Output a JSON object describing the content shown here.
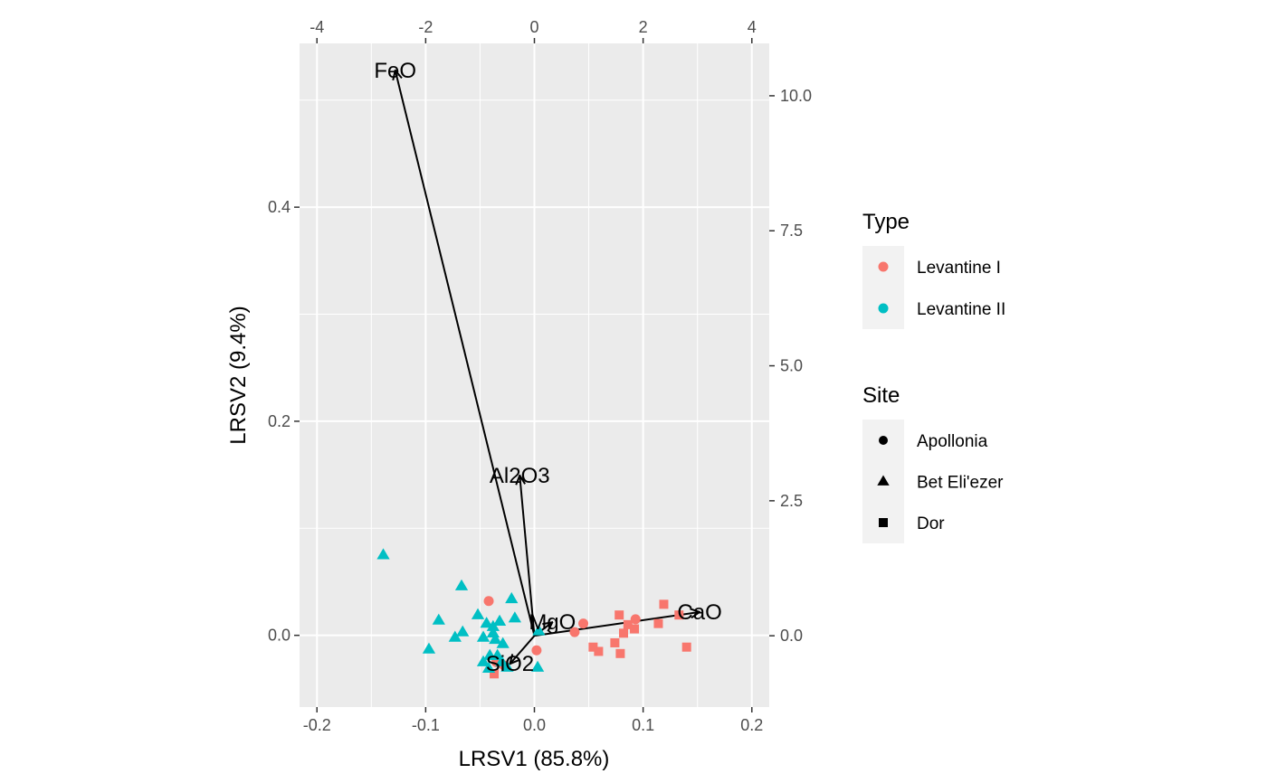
{
  "chart_data": {
    "type": "scatter",
    "subtype": "biplot",
    "title": "",
    "xlabel": "LRSV1 (85.8%)",
    "ylabel": "LRSV2 (9.4%)",
    "xlim": [
      -0.216,
      0.216
    ],
    "ylim": [
      -0.067,
      0.553
    ],
    "x_ticks": [
      -0.2,
      -0.1,
      0.0,
      0.1,
      0.2
    ],
    "x_tick_labels": [
      "-0.2",
      "-0.1",
      "0.0",
      "0.1",
      "0.2"
    ],
    "y_ticks": [
      0.0,
      0.2,
      0.4
    ],
    "y_tick_labels": [
      "0.0",
      "0.2",
      "0.4"
    ],
    "secondary_x": {
      "lim": [
        -4.32,
        4.32
      ],
      "ticks": [
        -4,
        -2,
        0,
        2,
        4
      ],
      "tick_labels": [
        "-4",
        "-2",
        "0",
        "2",
        "4"
      ]
    },
    "secondary_y": {
      "lim": [
        -1.32,
        10.97
      ],
      "ticks": [
        0.0,
        2.5,
        5.0,
        7.5,
        10.0
      ],
      "tick_labels": [
        "0.0",
        "2.5",
        "5.0",
        "7.5",
        "10.0"
      ]
    },
    "grid": true,
    "legend_position": "right",
    "colors": {
      "Levantine I": "#F8766D",
      "Levantine II": "#00BFC4"
    },
    "shapes": {
      "Apollonia": "circle",
      "Bet Eli'ezer": "triangle",
      "Dor": "square"
    },
    "legend": {
      "type_title": "Type",
      "type_entries": [
        "Levantine I",
        "Levantine II"
      ],
      "site_title": "Site",
      "site_entries": [
        "Apollonia",
        "Bet Eli'ezer",
        "Dor"
      ]
    },
    "points": [
      {
        "x": -0.042,
        "y": 0.032,
        "type": "Levantine I",
        "site": "Apollonia"
      },
      {
        "x": 0.045,
        "y": 0.011,
        "type": "Levantine I",
        "site": "Apollonia"
      },
      {
        "x": 0.093,
        "y": 0.015,
        "type": "Levantine I",
        "site": "Apollonia"
      },
      {
        "x": 0.037,
        "y": 0.003,
        "type": "Levantine I",
        "site": "Apollonia"
      },
      {
        "x": 0.002,
        "y": -0.014,
        "type": "Levantine I",
        "site": "Apollonia"
      },
      {
        "x": -0.035,
        "y": -0.025,
        "type": "Levantine I",
        "site": "Apollonia"
      },
      {
        "x": -0.028,
        "y": -0.028,
        "type": "Levantine I",
        "site": "Apollonia"
      },
      {
        "x": 0.119,
        "y": 0.029,
        "type": "Levantine I",
        "site": "Dor"
      },
      {
        "x": 0.133,
        "y": 0.019,
        "type": "Levantine I",
        "site": "Dor"
      },
      {
        "x": 0.078,
        "y": 0.019,
        "type": "Levantine I",
        "site": "Dor"
      },
      {
        "x": 0.114,
        "y": 0.011,
        "type": "Levantine I",
        "site": "Dor"
      },
      {
        "x": 0.086,
        "y": 0.01,
        "type": "Levantine I",
        "site": "Dor"
      },
      {
        "x": 0.092,
        "y": 0.006,
        "type": "Levantine I",
        "site": "Dor"
      },
      {
        "x": 0.082,
        "y": 0.002,
        "type": "Levantine I",
        "site": "Dor"
      },
      {
        "x": 0.074,
        "y": -0.007,
        "type": "Levantine I",
        "site": "Dor"
      },
      {
        "x": 0.054,
        "y": -0.011,
        "type": "Levantine I",
        "site": "Dor"
      },
      {
        "x": 0.059,
        "y": -0.015,
        "type": "Levantine I",
        "site": "Dor"
      },
      {
        "x": 0.079,
        "y": -0.017,
        "type": "Levantine I",
        "site": "Dor"
      },
      {
        "x": 0.14,
        "y": -0.011,
        "type": "Levantine I",
        "site": "Dor"
      },
      {
        "x": -0.037,
        "y": -0.036,
        "type": "Levantine I",
        "site": "Dor"
      },
      {
        "x": -0.139,
        "y": 0.075,
        "type": "Levantine II",
        "site": "Bet Eli'ezer"
      },
      {
        "x": -0.067,
        "y": 0.046,
        "type": "Levantine II",
        "site": "Bet Eli'ezer"
      },
      {
        "x": -0.021,
        "y": 0.034,
        "type": "Levantine II",
        "site": "Bet Eli'ezer"
      },
      {
        "x": -0.052,
        "y": 0.019,
        "type": "Levantine II",
        "site": "Bet Eli'ezer"
      },
      {
        "x": -0.018,
        "y": 0.016,
        "type": "Levantine II",
        "site": "Bet Eli'ezer"
      },
      {
        "x": -0.088,
        "y": 0.014,
        "type": "Levantine II",
        "site": "Bet Eli'ezer"
      },
      {
        "x": -0.032,
        "y": 0.013,
        "type": "Levantine II",
        "site": "Bet Eli'ezer"
      },
      {
        "x": -0.044,
        "y": 0.011,
        "type": "Levantine II",
        "site": "Bet Eli'ezer"
      },
      {
        "x": -0.038,
        "y": 0.008,
        "type": "Levantine II",
        "site": "Bet Eli'ezer"
      },
      {
        "x": -0.066,
        "y": 0.003,
        "type": "Levantine II",
        "site": "Bet Eli'ezer"
      },
      {
        "x": -0.038,
        "y": 0.002,
        "type": "Levantine II",
        "site": "Bet Eli'ezer"
      },
      {
        "x": -0.073,
        "y": -0.002,
        "type": "Levantine II",
        "site": "Bet Eli'ezer"
      },
      {
        "x": -0.047,
        "y": -0.002,
        "type": "Levantine II",
        "site": "Bet Eli'ezer"
      },
      {
        "x": -0.036,
        "y": -0.004,
        "type": "Levantine II",
        "site": "Bet Eli'ezer"
      },
      {
        "x": -0.029,
        "y": -0.008,
        "type": "Levantine II",
        "site": "Bet Eli'ezer"
      },
      {
        "x": -0.097,
        "y": -0.013,
        "type": "Levantine II",
        "site": "Bet Eli'ezer"
      },
      {
        "x": -0.041,
        "y": -0.019,
        "type": "Levantine II",
        "site": "Bet Eli'ezer"
      },
      {
        "x": -0.034,
        "y": -0.019,
        "type": "Levantine II",
        "site": "Bet Eli'ezer"
      },
      {
        "x": -0.047,
        "y": -0.025,
        "type": "Levantine II",
        "site": "Bet Eli'ezer"
      },
      {
        "x": -0.03,
        "y": -0.025,
        "type": "Levantine II",
        "site": "Bet Eli'ezer"
      },
      {
        "x": -0.042,
        "y": -0.031,
        "type": "Levantine II",
        "site": "Bet Eli'ezer"
      },
      {
        "x": 0.003,
        "y": -0.03,
        "type": "Levantine II",
        "site": "Bet Eli'ezer"
      },
      {
        "x": -0.025,
        "y": -0.03,
        "type": "Levantine II",
        "site": "Bet Eli'ezer"
      },
      {
        "x": 0.004,
        "y": 0.004,
        "type": "Levantine II",
        "site": "Bet Eli'ezer"
      }
    ],
    "loadings": [
      {
        "name": "FeO",
        "x": -2.56,
        "y": 10.47
      },
      {
        "name": "Al2O3",
        "x": -0.27,
        "y": 2.97
      },
      {
        "name": "MgO",
        "x": 0.33,
        "y": 0.25
      },
      {
        "name": "CaO",
        "x": 3.04,
        "y": 0.44
      },
      {
        "name": "SiO2",
        "x": -0.45,
        "y": -0.52
      }
    ]
  }
}
